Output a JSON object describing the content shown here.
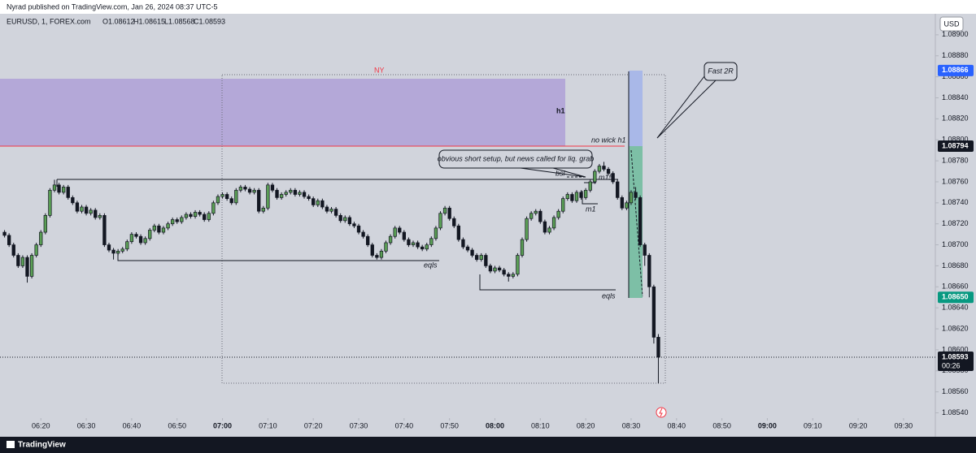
{
  "header": {
    "published": "Nyrad published on TradingView.com, Jan 26, 2024 08:37 UTC-5"
  },
  "chart_data": {
    "type": "candlestick",
    "title": "EURUSD, 1, FOREX.com",
    "ohlc_legend": [
      "O1.08612",
      "H1.08615",
      "L1.08568",
      "C1.08593"
    ],
    "currency": "USD",
    "x": [
      "06:12",
      "06:13",
      "06:14",
      "06:15",
      "06:16",
      "06:17",
      "06:18",
      "06:19",
      "06:20",
      "06:21",
      "06:22",
      "06:23",
      "06:24",
      "06:25",
      "06:26",
      "06:27",
      "06:28",
      "06:29",
      "06:30",
      "06:31",
      "06:32",
      "06:33",
      "06:34",
      "06:35",
      "06:36",
      "06:37",
      "06:38",
      "06:39",
      "06:40",
      "06:41",
      "06:42",
      "06:43",
      "06:44",
      "06:45",
      "06:46",
      "06:47",
      "06:48",
      "06:49",
      "06:50",
      "06:51",
      "06:52",
      "06:53",
      "06:54",
      "06:55",
      "06:56",
      "06:57",
      "06:58",
      "06:59",
      "07:00",
      "07:01",
      "07:02",
      "07:03",
      "07:04",
      "07:05",
      "07:06",
      "07:07",
      "07:08",
      "07:09",
      "07:10",
      "07:11",
      "07:12",
      "07:13",
      "07:14",
      "07:15",
      "07:16",
      "07:17",
      "07:18",
      "07:19",
      "07:20",
      "07:21",
      "07:22",
      "07:23",
      "07:24",
      "07:25",
      "07:26",
      "07:27",
      "07:28",
      "07:29",
      "07:30",
      "07:31",
      "07:32",
      "07:33",
      "07:34",
      "07:35",
      "07:36",
      "07:37",
      "07:38",
      "07:39",
      "07:40",
      "07:41",
      "07:42",
      "07:43",
      "07:44",
      "07:45",
      "07:46",
      "07:47",
      "07:48",
      "07:49",
      "07:50",
      "07:51",
      "07:52",
      "07:53",
      "07:54",
      "07:55",
      "07:56",
      "07:57",
      "07:58",
      "07:59",
      "08:00",
      "08:01",
      "08:02",
      "08:03",
      "08:04",
      "08:05",
      "08:06",
      "08:07",
      "08:08",
      "08:09",
      "08:10",
      "08:11",
      "08:12",
      "08:13",
      "08:14",
      "08:15",
      "08:16",
      "08:17",
      "08:18",
      "08:19",
      "08:20",
      "08:21",
      "08:22",
      "08:23",
      "08:24",
      "08:25",
      "08:26",
      "08:27",
      "08:28",
      "08:29",
      "08:30",
      "08:31",
      "08:32",
      "08:33",
      "08:34",
      "08:35",
      "08:36"
    ],
    "open": [
      1.08712,
      1.08709,
      1.087,
      1.0869,
      1.0868,
      1.08688,
      1.0867,
      1.0869,
      1.087,
      1.08712,
      1.08728,
      1.08752,
      1.08757,
      1.0875,
      1.08755,
      1.08745,
      1.0874,
      1.08732,
      1.08736,
      1.0873,
      1.08733,
      1.08726,
      1.08728,
      1.087,
      1.08695,
      1.08692,
      1.08694,
      1.08696,
      1.08703,
      1.0871,
      1.08708,
      1.08702,
      1.08706,
      1.08714,
      1.08718,
      1.08712,
      1.08716,
      1.0872,
      1.08724,
      1.08722,
      1.08726,
      1.08729,
      1.08727,
      1.08731,
      1.08729,
      1.08724,
      1.0873,
      1.0874,
      1.08746,
      1.08748,
      1.08744,
      1.0874,
      1.08752,
      1.08755,
      1.08753,
      1.0875,
      1.08752,
      1.08732,
      1.08735,
      1.08757,
      1.08752,
      1.08745,
      1.08748,
      1.0875,
      1.08752,
      1.08748,
      1.0875,
      1.08746,
      1.08744,
      1.08738,
      1.08742,
      1.08736,
      1.08732,
      1.08734,
      1.08728,
      1.08723,
      1.08726,
      1.0872,
      1.08718,
      1.08712,
      1.08708,
      1.087,
      1.0869,
      1.08688,
      1.08694,
      1.08702,
      1.08708,
      1.08716,
      1.08712,
      1.08705,
      1.087,
      1.08702,
      1.08698,
      1.08696,
      1.087,
      1.08706,
      1.08716,
      1.0873,
      1.08735,
      1.08725,
      1.08718,
      1.08705,
      1.08698,
      1.08695,
      1.0869,
      1.08686,
      1.0869,
      1.0868,
      1.08675,
      1.08678,
      1.08676,
      1.08672,
      1.0867,
      1.08672,
      1.0869,
      1.08705,
      1.08725,
      1.0873,
      1.08732,
      1.08722,
      1.08712,
      1.08716,
      1.08726,
      1.08732,
      1.08744,
      1.08748,
      1.08742,
      1.0875,
      1.08745,
      1.08752,
      1.0876,
      1.0877,
      1.08775,
      1.08772,
      1.08768,
      1.0876,
      1.08745,
      1.08735,
      1.0874,
      1.0875,
      1.08745,
      1.087,
      1.0869,
      1.0866,
      1.08612
    ],
    "high": [
      1.08714,
      1.08711,
      1.08702,
      1.08692,
      1.0869,
      1.0869,
      1.08692,
      1.08702,
      1.08714,
      1.0873,
      1.08754,
      1.08762,
      1.08759,
      1.08757,
      1.08757,
      1.08747,
      1.08742,
      1.08738,
      1.08738,
      1.08735,
      1.08735,
      1.0873,
      1.0873,
      1.08702,
      1.08697,
      1.08696,
      1.08698,
      1.08705,
      1.08712,
      1.08712,
      1.0871,
      1.08708,
      1.08716,
      1.0872,
      1.0872,
      1.08718,
      1.08722,
      1.08726,
      1.08726,
      1.08728,
      1.08731,
      1.08731,
      1.08733,
      1.08733,
      1.08731,
      1.08732,
      1.08742,
      1.08748,
      1.0875,
      1.0875,
      1.08746,
      1.08754,
      1.08757,
      1.08757,
      1.08755,
      1.08754,
      1.08754,
      1.08737,
      1.08759,
      1.08759,
      1.08754,
      1.0875,
      1.08752,
      1.08754,
      1.08754,
      1.08752,
      1.08752,
      1.08748,
      1.08746,
      1.08744,
      1.08744,
      1.08738,
      1.08736,
      1.08736,
      1.0873,
      1.08728,
      1.08728,
      1.08722,
      1.0872,
      1.08714,
      1.0871,
      1.08702,
      1.08692,
      1.08696,
      1.08704,
      1.0871,
      1.08718,
      1.08718,
      1.08714,
      1.08707,
      1.08704,
      1.08704,
      1.087,
      1.08702,
      1.08708,
      1.08718,
      1.08732,
      1.08737,
      1.08737,
      1.08727,
      1.0872,
      1.08707,
      1.087,
      1.08697,
      1.08692,
      1.08692,
      1.08692,
      1.08682,
      1.0868,
      1.0868,
      1.08678,
      1.08674,
      1.08674,
      1.08692,
      1.08707,
      1.08727,
      1.08732,
      1.08734,
      1.08734,
      1.08724,
      1.08718,
      1.08728,
      1.08734,
      1.08746,
      1.0875,
      1.0875,
      1.08752,
      1.08752,
      1.08754,
      1.08762,
      1.08772,
      1.08777,
      1.08779,
      1.08774,
      1.0877,
      1.08762,
      1.08747,
      1.08742,
      1.08752,
      1.08755,
      1.08747,
      1.08702,
      1.08692,
      1.08662,
      1.08615
    ],
    "low": [
      1.08707,
      1.08698,
      1.08688,
      1.08678,
      1.08678,
      1.08664,
      1.08668,
      1.08688,
      1.08698,
      1.0871,
      1.08726,
      1.0875,
      1.08748,
      1.08748,
      1.08743,
      1.08738,
      1.0873,
      1.0873,
      1.08728,
      1.08728,
      1.08724,
      1.08724,
      1.08698,
      1.08693,
      1.08686,
      1.0869,
      1.08692,
      1.08694,
      1.08701,
      1.08706,
      1.087,
      1.087,
      1.08704,
      1.08712,
      1.0871,
      1.0871,
      1.08714,
      1.08718,
      1.0872,
      1.0872,
      1.08724,
      1.08725,
      1.08725,
      1.08727,
      1.08722,
      1.08722,
      1.08728,
      1.08738,
      1.08744,
      1.08742,
      1.08738,
      1.08738,
      1.0875,
      1.08751,
      1.08748,
      1.08748,
      1.0873,
      1.0873,
      1.08733,
      1.0875,
      1.08743,
      1.08743,
      1.08746,
      1.08748,
      1.08746,
      1.08746,
      1.08744,
      1.08742,
      1.08736,
      1.08736,
      1.08734,
      1.0873,
      1.0873,
      1.08726,
      1.08721,
      1.08721,
      1.08718,
      1.08716,
      1.0871,
      1.08706,
      1.08698,
      1.08688,
      1.08686,
      1.08686,
      1.08692,
      1.087,
      1.08706,
      1.0871,
      1.08703,
      1.08698,
      1.08698,
      1.08696,
      1.08694,
      1.08694,
      1.08698,
      1.08704,
      1.08714,
      1.08728,
      1.08723,
      1.08716,
      1.08703,
      1.08696,
      1.08693,
      1.08688,
      1.08684,
      1.08684,
      1.08678,
      1.08673,
      1.08673,
      1.08674,
      1.0867,
      1.08665,
      1.08668,
      1.0867,
      1.08688,
      1.08703,
      1.08723,
      1.08728,
      1.0872,
      1.0871,
      1.0871,
      1.08714,
      1.08724,
      1.0873,
      1.08742,
      1.0874,
      1.0874,
      1.08743,
      1.08743,
      1.0875,
      1.08758,
      1.08768,
      1.0877,
      1.08766,
      1.08758,
      1.08743,
      1.08733,
      1.08733,
      1.08738,
      1.08743,
      1.08698,
      1.0868,
      1.0865,
      1.08606,
      1.08568
    ],
    "close": [
      1.08709,
      1.087,
      1.0869,
      1.0868,
      1.08688,
      1.0867,
      1.0869,
      1.087,
      1.08712,
      1.08728,
      1.08752,
      1.08757,
      1.0875,
      1.08755,
      1.08745,
      1.0874,
      1.08732,
      1.08736,
      1.0873,
      1.08733,
      1.08726,
      1.08728,
      1.087,
      1.08695,
      1.08692,
      1.08694,
      1.08696,
      1.08703,
      1.0871,
      1.08708,
      1.08702,
      1.08706,
      1.08714,
      1.08718,
      1.08712,
      1.08716,
      1.0872,
      1.08724,
      1.08722,
      1.08726,
      1.08729,
      1.08727,
      1.08731,
      1.08729,
      1.08724,
      1.0873,
      1.0874,
      1.08746,
      1.08748,
      1.08744,
      1.0874,
      1.08752,
      1.08755,
      1.08753,
      1.0875,
      1.08752,
      1.08732,
      1.08735,
      1.08757,
      1.08752,
      1.08745,
      1.08748,
      1.0875,
      1.08752,
      1.08748,
      1.0875,
      1.08746,
      1.08744,
      1.08738,
      1.08742,
      1.08736,
      1.08732,
      1.08734,
      1.08728,
      1.08723,
      1.08726,
      1.0872,
      1.08718,
      1.08712,
      1.08708,
      1.087,
      1.0869,
      1.08688,
      1.08694,
      1.08702,
      1.08708,
      1.08716,
      1.08712,
      1.08705,
      1.087,
      1.08702,
      1.08698,
      1.08696,
      1.087,
      1.08706,
      1.08716,
      1.0873,
      1.08735,
      1.08725,
      1.08718,
      1.08705,
      1.08698,
      1.08695,
      1.0869,
      1.08686,
      1.0869,
      1.0868,
      1.08675,
      1.08678,
      1.08676,
      1.08672,
      1.0867,
      1.08672,
      1.0869,
      1.08705,
      1.08725,
      1.0873,
      1.08732,
      1.08722,
      1.08712,
      1.08716,
      1.08726,
      1.08732,
      1.08744,
      1.08748,
      1.08742,
      1.0875,
      1.08745,
      1.08752,
      1.0876,
      1.0877,
      1.08775,
      1.08772,
      1.08768,
      1.0876,
      1.08745,
      1.08735,
      1.0874,
      1.0875,
      1.08745,
      1.087,
      1.0869,
      1.0866,
      1.08612,
      1.08593
    ],
    "up_color": "#5a9e55",
    "down_color": "#131722",
    "xlim": [
      "06:11",
      "09:37"
    ],
    "xticks": [
      "06:20",
      "06:30",
      "06:40",
      "06:50",
      "07:00",
      "07:10",
      "07:20",
      "07:30",
      "07:40",
      "07:50",
      "08:00",
      "08:10",
      "08:20",
      "08:30",
      "08:40",
      "08:50",
      "09:00",
      "09:10",
      "09:20",
      "09:30"
    ],
    "ylim": [
      1.08535,
      1.0892
    ],
    "yticks": [
      {
        "value": 1.089,
        "label": "1.08900"
      },
      {
        "value": 1.0888,
        "label": "1.08880"
      },
      {
        "value": 1.0886,
        "label": "1.08860"
      },
      {
        "value": 1.0884,
        "label": "1.08840"
      },
      {
        "value": 1.0882,
        "label": "1.08820"
      },
      {
        "value": 1.088,
        "label": "1.08800"
      },
      {
        "value": 1.0878,
        "label": "1.08780"
      },
      {
        "value": 1.0876,
        "label": "1.08760"
      },
      {
        "value": 1.0874,
        "label": "1.08740"
      },
      {
        "value": 1.0872,
        "label": "1.08720"
      },
      {
        "value": 1.087,
        "label": "1.08700"
      },
      {
        "value": 1.0868,
        "label": "1.08680"
      },
      {
        "value": 1.0866,
        "label": "1.08660"
      },
      {
        "value": 1.0864,
        "label": "1.08640"
      },
      {
        "value": 1.0862,
        "label": "1.08620"
      },
      {
        "value": 1.086,
        "label": "1.08600"
      },
      {
        "value": 1.0858,
        "label": "1.08580"
      },
      {
        "value": 1.0856,
        "label": "1.08560"
      },
      {
        "value": 1.0854,
        "label": "1.08540"
      }
    ],
    "price_labels": [
      {
        "value": 1.08866,
        "label": "1.08866",
        "color": "#2962ff"
      },
      {
        "value": 1.08794,
        "label": "1.08794",
        "color": "#131722"
      },
      {
        "value": 1.0865,
        "label": "1.08650",
        "color": "#089981"
      },
      {
        "value": 1.08593,
        "label": "1.08593",
        "color": "#131722"
      }
    ],
    "countdown": "00:26",
    "annotations": {
      "session": "NY",
      "zone": "h1",
      "no_wick": "no wick h1",
      "callout": "obvious short setup, but news called for liq. grab",
      "target": "Fast 2R",
      "bsl": "bsl",
      "m15": "m15",
      "m1": "m1",
      "eqls_1": "eqls",
      "eqls_2": "eqls"
    }
  },
  "footer": {
    "brand": "TradingView"
  }
}
